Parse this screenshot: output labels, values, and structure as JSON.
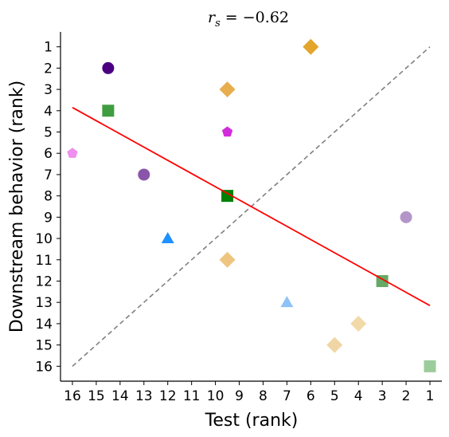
{
  "chart_data": {
    "type": "scatter",
    "title": {
      "symbol": "r",
      "subscript": "s",
      "rest": " = −0.62"
    },
    "xlabel": "Test (rank)",
    "ylabel": "Downstream behavior (rank)",
    "xlim": [
      16.5,
      0.5
    ],
    "ylim": [
      16.7,
      0.3
    ],
    "x_inverted": true,
    "y_inverted": true,
    "xticks": [
      16,
      15,
      14,
      13,
      12,
      11,
      10,
      9,
      8,
      7,
      6,
      5,
      4,
      3,
      2,
      1
    ],
    "yticks": [
      1,
      2,
      3,
      4,
      5,
      6,
      7,
      8,
      9,
      10,
      11,
      12,
      13,
      14,
      15,
      16
    ],
    "grid": false,
    "legend": "none",
    "points": [
      {
        "x": 6,
        "y": 1,
        "marker": "diamond",
        "color": "#E09B14",
        "alpha": 0.9
      },
      {
        "x": 14.5,
        "y": 2,
        "marker": "circle",
        "color": "#4B0082",
        "alpha": 1.0
      },
      {
        "x": 9.5,
        "y": 3,
        "marker": "diamond",
        "color": "#E5A43A",
        "alpha": 0.9
      },
      {
        "x": 14.5,
        "y": 4,
        "marker": "square",
        "color": "#2A922A",
        "alpha": 0.9
      },
      {
        "x": 9.5,
        "y": 5,
        "marker": "pentagon",
        "color": "#D22BDB",
        "alpha": 1.0
      },
      {
        "x": 16,
        "y": 6,
        "marker": "pentagon",
        "color": "#EE8EEE",
        "alpha": 1.0
      },
      {
        "x": 13,
        "y": 7,
        "marker": "circle",
        "color": "#8A55A8",
        "alpha": 1.0
      },
      {
        "x": 9.5,
        "y": 8,
        "marker": "square",
        "color": "#008000",
        "alpha": 1.0
      },
      {
        "x": 2,
        "y": 9,
        "marker": "circle",
        "color": "#B495C8",
        "alpha": 1.0
      },
      {
        "x": 12,
        "y": 10,
        "marker": "triangle",
        "color": "#1E90FF",
        "alpha": 1.0
      },
      {
        "x": 9.5,
        "y": 11,
        "marker": "diamond",
        "color": "#EEC57F",
        "alpha": 1.0
      },
      {
        "x": 3,
        "y": 12,
        "marker": "square",
        "color": "#66A966",
        "alpha": 1.0
      },
      {
        "x": 7,
        "y": 13,
        "marker": "triangle",
        "color": "#8EC3F8",
        "alpha": 1.0
      },
      {
        "x": 4,
        "y": 14,
        "marker": "diamond",
        "color": "#F2D9A8",
        "alpha": 1.0
      },
      {
        "x": 5,
        "y": 15,
        "marker": "diamond",
        "color": "#F0D6A5",
        "alpha": 1.0
      },
      {
        "x": 1,
        "y": 16,
        "marker": "square",
        "color": "#9CCB9C",
        "alpha": 1.0
      }
    ],
    "fit_line": {
      "x": [
        16,
        1
      ],
      "y": [
        3.85,
        13.15
      ],
      "color": "#FF0000"
    },
    "identity_line": {
      "x": [
        16,
        1
      ],
      "y": [
        16,
        1
      ],
      "color": "#808080",
      "style": "dashed"
    }
  }
}
